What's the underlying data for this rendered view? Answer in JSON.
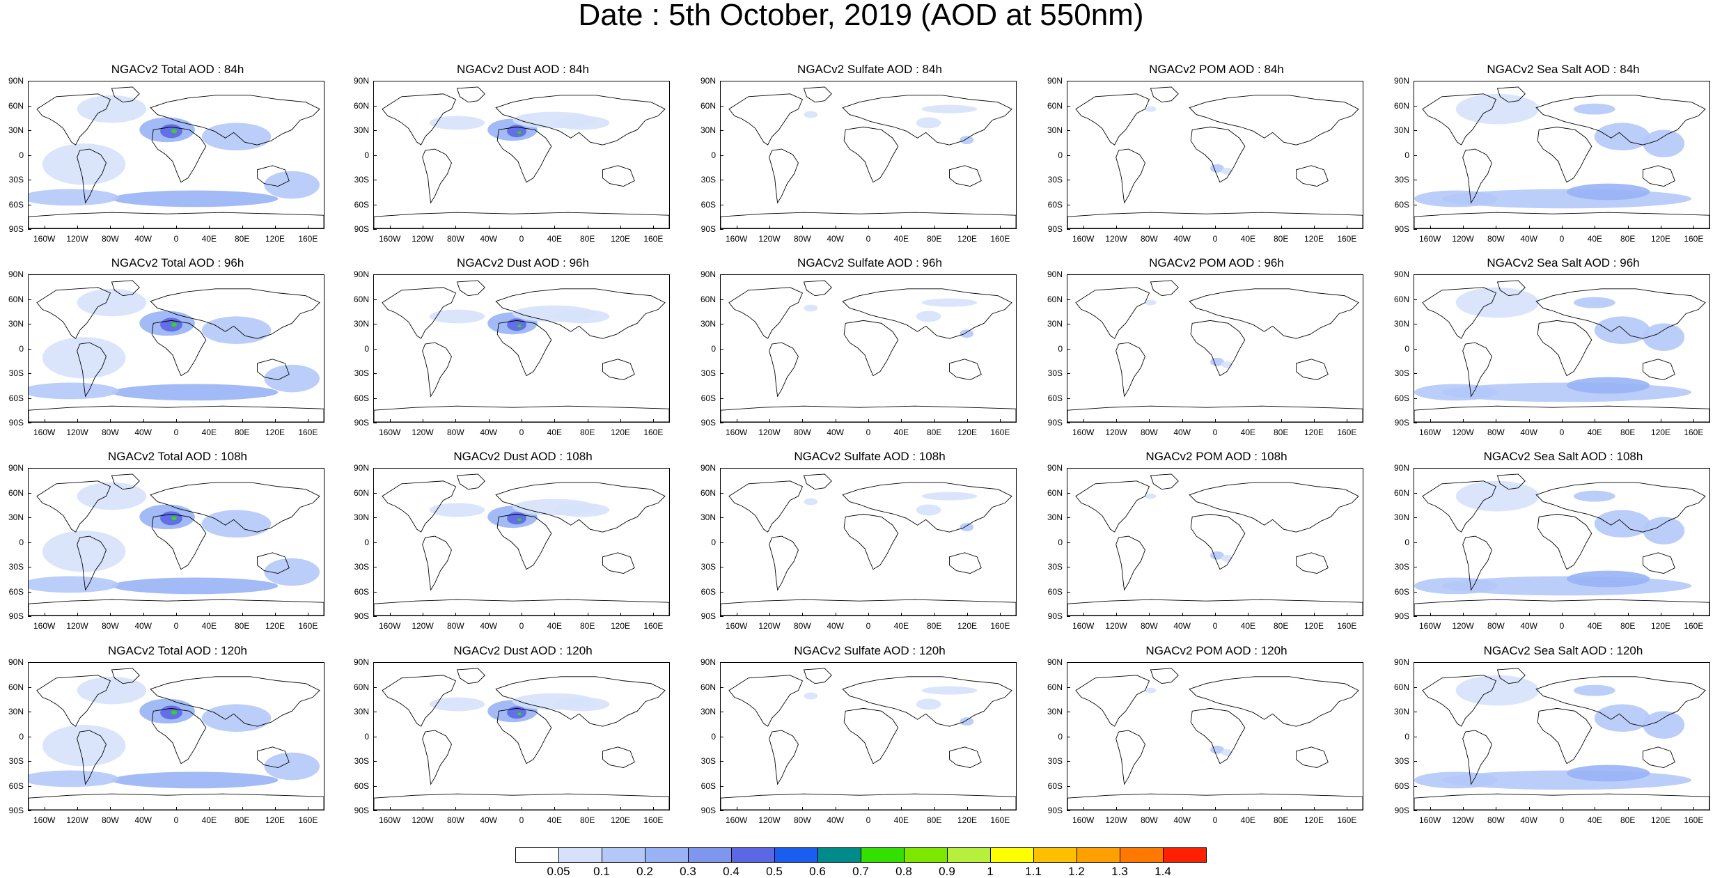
{
  "title": "Date : 5th October, 2019 (AOD at 550nm)",
  "axes": {
    "lat_labels": [
      "90N",
      "60N",
      "30N",
      "0",
      "30S",
      "60S",
      "90S"
    ],
    "lon_labels": [
      "160W",
      "120W",
      "80W",
      "40W",
      "0",
      "40E",
      "80E",
      "120E",
      "160E"
    ]
  },
  "panels": [
    [
      {
        "title": "NGACv2 Total AOD : 84h",
        "species": "total",
        "forecast_hour": 84
      },
      {
        "title": "NGACv2 Dust AOD : 84h",
        "species": "dust",
        "forecast_hour": 84
      },
      {
        "title": "NGACv2 Sulfate AOD : 84h",
        "species": "sulfate",
        "forecast_hour": 84
      },
      {
        "title": "NGACv2 POM AOD : 84h",
        "species": "pom",
        "forecast_hour": 84
      },
      {
        "title": "NGACv2 Sea Salt AOD : 84h",
        "species": "seasalt",
        "forecast_hour": 84
      }
    ],
    [
      {
        "title": "NGACv2 Total AOD : 96h",
        "species": "total",
        "forecast_hour": 96
      },
      {
        "title": "NGACv2 Dust AOD : 96h",
        "species": "dust",
        "forecast_hour": 96
      },
      {
        "title": "NGACv2 Sulfate AOD : 96h",
        "species": "sulfate",
        "forecast_hour": 96
      },
      {
        "title": "NGACv2 POM AOD : 96h",
        "species": "pom",
        "forecast_hour": 96
      },
      {
        "title": "NGACv2 Sea Salt AOD : 96h",
        "species": "seasalt",
        "forecast_hour": 96
      }
    ],
    [
      {
        "title": "NGACv2 Total AOD : 108h",
        "species": "total",
        "forecast_hour": 108
      },
      {
        "title": "NGACv2 Dust AOD : 108h",
        "species": "dust",
        "forecast_hour": 108
      },
      {
        "title": "NGACv2 Sulfate AOD : 108h",
        "species": "sulfate",
        "forecast_hour": 108
      },
      {
        "title": "NGACv2 POM AOD : 108h",
        "species": "pom",
        "forecast_hour": 108
      },
      {
        "title": "NGACv2 Sea Salt AOD : 108h",
        "species": "seasalt",
        "forecast_hour": 108
      }
    ],
    [
      {
        "title": "NGACv2 Total AOD : 120h",
        "species": "total",
        "forecast_hour": 120
      },
      {
        "title": "NGACv2 Dust AOD : 120h",
        "species": "dust",
        "forecast_hour": 120
      },
      {
        "title": "NGACv2 Sulfate AOD : 120h",
        "species": "sulfate",
        "forecast_hour": 120
      },
      {
        "title": "NGACv2 POM AOD : 120h",
        "species": "pom",
        "forecast_hour": 120
      },
      {
        "title": "NGACv2 Sea Salt  AOD : 120h",
        "species": "seasalt",
        "forecast_hour": 120
      }
    ]
  ],
  "colorbar": {
    "labels": [
      "0.05",
      "0.1",
      "0.2",
      "0.3",
      "0.4",
      "0.5",
      "0.6",
      "0.7",
      "0.8",
      "0.9",
      "1",
      "1.1",
      "1.2",
      "1.3",
      "1.4"
    ],
    "colors": [
      "#ffffff",
      "#d6e2fb",
      "#b4c8f8",
      "#98b2f5",
      "#7f96ef",
      "#5b67e4",
      "#1a5ef0",
      "#008b8b",
      "#33e000",
      "#7ce800",
      "#b6f03c",
      "#ffff00",
      "#ffc000",
      "#ffa000",
      "#ff7800",
      "#ff2000"
    ]
  }
}
